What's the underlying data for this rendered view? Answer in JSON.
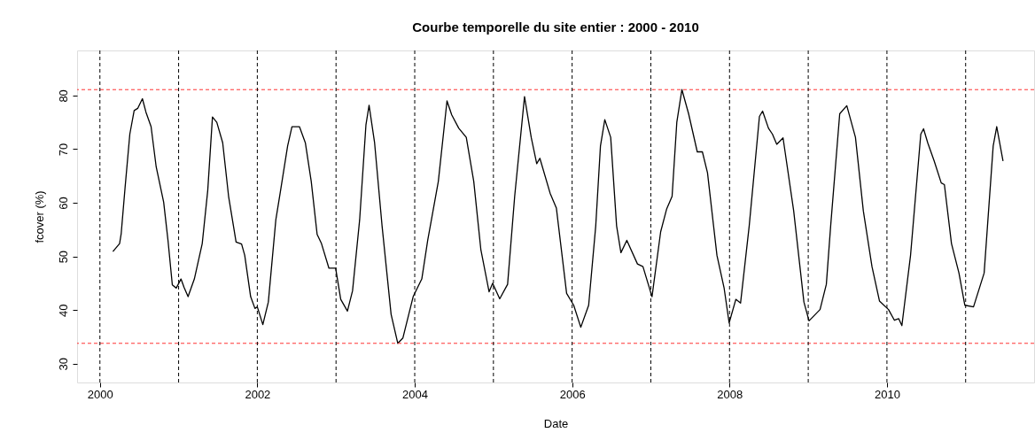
{
  "chart_data": {
    "type": "line",
    "title": "Courbe temporelle du site entier : 2000 - 2010",
    "xlabel": "Date",
    "ylabel": "fcover (%)",
    "x": [
      2000.165,
      2000.25,
      2000.27,
      2000.32,
      2000.38,
      2000.435,
      2000.48,
      2000.54,
      2000.585,
      2000.65,
      2000.715,
      2000.81,
      2000.865,
      2000.92,
      2000.97,
      2001.03,
      2001.07,
      2001.12,
      2001.2,
      2001.3,
      2001.37,
      2001.43,
      2001.485,
      2001.56,
      2001.635,
      2001.73,
      2001.8,
      2001.84,
      2001.915,
      2001.97,
      2002.0,
      2002.07,
      2002.14,
      2002.235,
      2002.29,
      2002.385,
      2002.44,
      2002.535,
      2002.61,
      2002.685,
      2002.76,
      2002.815,
      2002.91,
      2002.995,
      2003.06,
      2003.145,
      2003.21,
      2003.3,
      2003.38,
      2003.42,
      2003.49,
      2003.585,
      2003.7,
      2003.785,
      2003.85,
      2003.98,
      2004.09,
      2004.165,
      2004.3,
      2004.41,
      2004.47,
      2004.56,
      2004.655,
      2004.75,
      2004.84,
      2004.945,
      2004.99,
      2005.08,
      2005.18,
      2005.27,
      2005.395,
      2005.48,
      2005.55,
      2005.59,
      2005.72,
      2005.8,
      2005.93,
      2006.02,
      2006.11,
      2006.21,
      2006.3,
      2006.36,
      2006.415,
      2006.49,
      2006.565,
      2006.62,
      2006.695,
      2006.83,
      2006.9,
      2007.015,
      2007.125,
      2007.2,
      2007.27,
      2007.33,
      2007.395,
      2007.48,
      2007.59,
      2007.655,
      2007.72,
      2007.84,
      2007.93,
      2007.995,
      2008.08,
      2008.14,
      2008.25,
      2008.38,
      2008.42,
      2008.495,
      2008.545,
      2008.6,
      2008.68,
      2008.815,
      2008.945,
      2009.01,
      2009.15,
      2009.23,
      2009.285,
      2009.4,
      2009.49,
      2009.6,
      2009.7,
      2009.81,
      2009.905,
      2010.02,
      2010.095,
      2010.15,
      2010.19,
      2010.3,
      2010.43,
      2010.465,
      2010.52,
      2010.6,
      2010.69,
      2010.73,
      2010.82,
      2010.915,
      2010.99,
      2011.1,
      2011.235,
      2011.35,
      2011.395,
      2011.475
    ],
    "series": [
      {
        "color": "#000000",
        "values": [
          50.9,
          52.4,
          54.2,
          62.9,
          72.8,
          77.2,
          77.6,
          79.4,
          76.9,
          74.2,
          66.7,
          60.1,
          53.0,
          44.7,
          44.1,
          45.8,
          44.2,
          42.5,
          45.8,
          52.4,
          62.3,
          76.0,
          75.0,
          71.2,
          61.2,
          52.7,
          52.3,
          50.2,
          42.5,
          40.3,
          40.6,
          37.3,
          41.5,
          56.8,
          61.8,
          70.6,
          74.2,
          74.2,
          71.2,
          64.0,
          54.1,
          52.4,
          47.8,
          47.8,
          42.0,
          39.8,
          43.6,
          56.8,
          74.5,
          78.2,
          71.2,
          55.7,
          39.2,
          33.8,
          34.8,
          42.5,
          45.8,
          53.0,
          64.0,
          79.0,
          76.4,
          73.9,
          72.2,
          64.0,
          51.3,
          43.4,
          45.0,
          42.1,
          44.8,
          61.2,
          79.8,
          72.2,
          67.3,
          68.3,
          61.8,
          59.0,
          43.1,
          40.9,
          36.8,
          40.9,
          55.7,
          70.6,
          75.5,
          72.2,
          55.7,
          50.7,
          53.0,
          48.6,
          48.1,
          42.5,
          54.6,
          58.8,
          61.2,
          75.0,
          81.1,
          76.6,
          69.5,
          69.5,
          65.6,
          50.2,
          44.2,
          37.6,
          42.0,
          41.3,
          55.7,
          76.1,
          77.1,
          73.9,
          72.8,
          70.9,
          72.1,
          58.5,
          41.5,
          38.0,
          40.1,
          44.8,
          55.7,
          76.6,
          78.1,
          72.2,
          58.5,
          48.1,
          41.7,
          40.1,
          38.1,
          38.4,
          37.1,
          50.2,
          72.8,
          73.8,
          71.1,
          67.8,
          63.7,
          63.4,
          52.4,
          46.9,
          40.9,
          40.6,
          46.9,
          70.6,
          74.2,
          67.8
        ]
      }
    ],
    "xlim": [
      1999.71,
      2011.87
    ],
    "xticks": [
      2000,
      2002,
      2004,
      2006,
      2008,
      2010
    ],
    "ylim": [
      26.5,
      88.4
    ],
    "yticks": [
      30,
      40,
      50,
      60,
      70,
      80
    ],
    "ref_lines": [
      {
        "axis": "y",
        "value": 81.1,
        "color": "#ff3333",
        "line_style": "dashed"
      },
      {
        "axis": "y",
        "value": 33.8,
        "color": "#ff3333",
        "line_style": "dashed"
      },
      {
        "axis": "x",
        "value": 2000,
        "color": "#000000",
        "line_style": "dashed"
      },
      {
        "axis": "x",
        "value": 2001,
        "color": "#000000",
        "line_style": "dashed"
      },
      {
        "axis": "x",
        "value": 2002,
        "color": "#000000",
        "line_style": "dashed"
      },
      {
        "axis": "x",
        "value": 2003,
        "color": "#000000",
        "line_style": "dashed"
      },
      {
        "axis": "x",
        "value": 2004,
        "color": "#000000",
        "line_style": "dashed"
      },
      {
        "axis": "x",
        "value": 2005,
        "color": "#000000",
        "line_style": "dashed"
      },
      {
        "axis": "x",
        "value": 2006,
        "color": "#000000",
        "line_style": "dashed"
      },
      {
        "axis": "x",
        "value": 2007,
        "color": "#000000",
        "line_style": "dashed"
      },
      {
        "axis": "x",
        "value": 2008,
        "color": "#000000",
        "line_style": "dashed"
      },
      {
        "axis": "x",
        "value": 2009,
        "color": "#000000",
        "line_style": "dashed"
      },
      {
        "axis": "x",
        "value": 2010,
        "color": "#000000",
        "line_style": "dashed"
      },
      {
        "axis": "x",
        "value": 2011,
        "color": "#000000",
        "line_style": "dashed"
      }
    ],
    "grid": false,
    "marker": "none",
    "line_style": "solid"
  }
}
